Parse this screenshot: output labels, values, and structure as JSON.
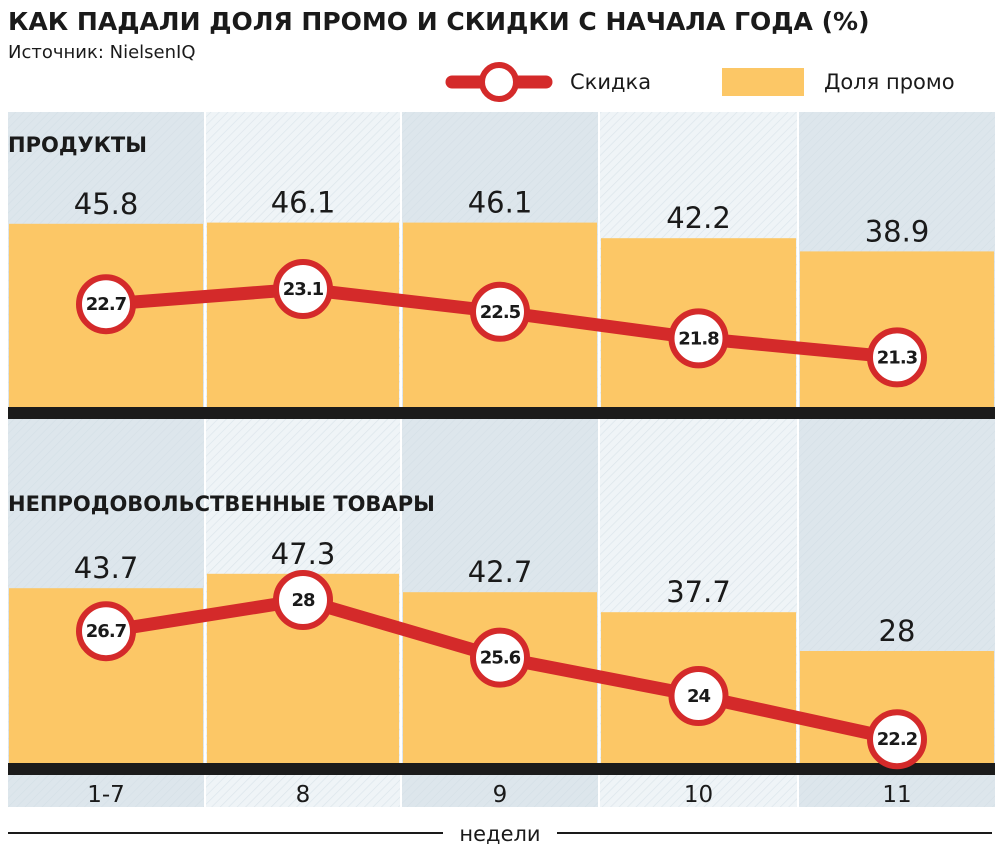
{
  "title": "КАК ПАДАЛИ ДОЛЯ ПРОМО И СКИДКИ С НАЧАЛА ГОДА (%)",
  "source": "Источник: NielsenIQ",
  "legend": {
    "discount": "Скидка",
    "promo": "Доля промо"
  },
  "colors": {
    "bar": "#fcc766",
    "line": "#d42a2a",
    "baseline": "#1b1b1b",
    "band_dark": "#dde6ec",
    "band_light": "#eff4f7",
    "hatch": "#cfdbe3"
  },
  "chart_data": [
    {
      "type": "bar",
      "panel_title": "ПРОДУКТЫ",
      "categories": [
        "1-7",
        "8",
        "9",
        "10",
        "11"
      ],
      "series": [
        {
          "name": "Доля промо",
          "type": "bar",
          "values": [
            45.8,
            46.1,
            46.1,
            42.2,
            38.9
          ]
        },
        {
          "name": "Скидка",
          "type": "line",
          "values": [
            22.7,
            23.1,
            22.5,
            21.8,
            21.3
          ]
        }
      ],
      "xlabel": "недели",
      "ylabel": "",
      "ylim": [
        0,
        50
      ]
    },
    {
      "type": "bar",
      "panel_title": "НЕПРОДОВОЛЬСТВЕННЫЕ ТОВАРЫ",
      "categories": [
        "1-7",
        "8",
        "9",
        "10",
        "11"
      ],
      "series": [
        {
          "name": "Доля промо",
          "type": "bar",
          "values": [
            43.7,
            47.3,
            42.7,
            37.7,
            28
          ]
        },
        {
          "name": "Скидка",
          "type": "line",
          "values": [
            26.7,
            28,
            25.6,
            24,
            22.2
          ]
        }
      ],
      "xlabel": "недели",
      "ylabel": "",
      "ylim": [
        0,
        50
      ]
    }
  ]
}
